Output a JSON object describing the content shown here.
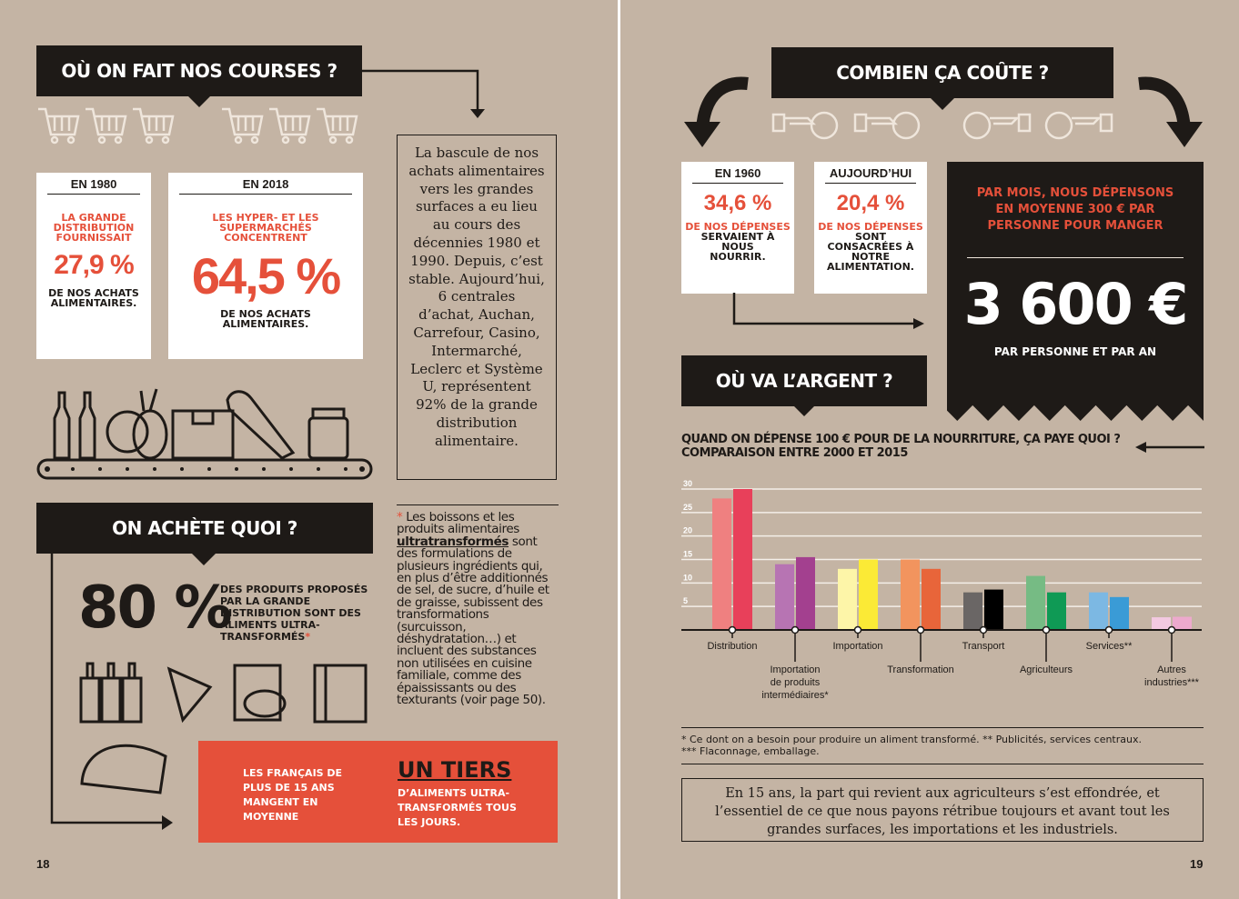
{
  "left": {
    "section1": {
      "title": "OÙ ON FAIT NOS COURSES ?",
      "card1980": {
        "year": "EN 1980",
        "lead": "LA GRANDE DISTRIBUTION FOURNISSAIT",
        "value": "27,9 %",
        "tail": "DE NOS ACHATS ALIMENTAIRES."
      },
      "card2018": {
        "year": "EN 2018",
        "lead": "LES HYPER- ET LES SUPERMARCHÉS CONCENTRENT",
        "value": "64,5 %",
        "tail": "DE NOS ACHATS ALIMENTAIRES."
      },
      "sidebox": "La bascule de nos achats alimentaires vers les grandes surfaces a eu lieu au cours des décennies 1980 et 1990. Depuis, c’est stable. Aujourd’hui, 6 centrales d’achat, Auchan, Carrefour, Casino, Intermarché, Leclerc et Système U, représentent 92% de la grande distribution alimentaire."
    },
    "section2": {
      "title": "ON ACHÈTE QUOI ?",
      "big": "80 %",
      "desc": "DES PRODUITS PROPOSÉS PAR LA GRANDE DISTRIBUTION SONT DES ALIMENTS ULTRA-TRANSFORMÉS",
      "star": "*",
      "note_star": "*",
      "note_a": "Les boissons et les produits alimentaires",
      "note_bold": "ultratransformés",
      "note_b": "sont des formulations de plusieurs ingrédients qui, en plus d’être additionnés de sel, de sucre, d’huile et de graisse, subissent des transformations (surcuisson, déshydratation…) et incluent des substances non utilisées en cuisine familiale, comme des épaississants ou des texturants (voir page 50).",
      "banner_left": "LES FRANÇAIS DE PLUS DE 15 ANS MANGENT EN MOYENNE",
      "banner_big": "UN TIERS",
      "banner_right": "D’ALIMENTS ULTRA-TRANSFORMÉS TOUS LES JOURS."
    },
    "page_number": "18"
  },
  "right": {
    "section1": {
      "title": "COMBIEN ÇA COÛTE ?",
      "card1960": {
        "year": "EN 1960",
        "value": "34,6 %",
        "lead": "DE NOS DÉPENSES",
        "tail": "SERVAIENT À NOUS NOURRIR."
      },
      "cardToday": {
        "year": "AUJOURD’HUI",
        "value": "20,4 %",
        "lead": "DE NOS DÉPENSES",
        "tail": "SONT CONSACRÉES À NOTRE ALIMENTATION."
      },
      "black_lead": "PAR MOIS, NOUS DÉPENSONS EN MOYENNE 300 € PAR PERSONNE POUR MANGER",
      "black_value": "3 600 €",
      "black_tail": "PAR PERSONNE ET PAR AN"
    },
    "section2": {
      "title": "OÙ VA L’ARGENT ?",
      "question": "QUAND ON DÉPENSE 100 € POUR DE LA NOURRITURE, ÇA PAYE QUOI ?",
      "subtitle": "COMPARAISON ENTRE 2000 ET 2015",
      "footnote1": "* Ce dont on a besoin pour produire un aliment transformé. ** Publicités, services centraux.",
      "footnote2": "*** Flaconnage, emballage.",
      "conclusion": "En 15 ans, la part qui revient aux agriculteurs s’est effondrée, et l’essentiel de ce que nous payons rétribue toujours et avant tout les grandes surfaces, les importations et les industriels."
    },
    "page_number": "19"
  },
  "chart_data": {
    "type": "bar",
    "title": "QUAND ON DÉPENSE 100 € POUR DE LA NOURRITURE, ÇA PAYE QUOI ?",
    "subtitle": "COMPARAISON ENTRE 2000 ET 2015",
    "categories": [
      "Distribution",
      "Importation de produits intermédiaires*",
      "Importation",
      "Transformation",
      "Transport",
      "Agriculteurs",
      "Services**",
      "Autres industries***"
    ],
    "series": [
      {
        "name": "2000",
        "values": [
          28,
          14,
          13,
          15,
          8,
          11.5,
          8,
          2.7
        ]
      },
      {
        "name": "2015",
        "values": [
          30,
          15.5,
          15,
          13,
          8.6,
          8,
          7,
          2.8
        ]
      }
    ],
    "colors": [
      [
        "#ef8080",
        "#e8405a"
      ],
      [
        "#b774b3",
        "#a3408f"
      ],
      [
        "#fdf5a8",
        "#fbea36"
      ],
      [
        "#f2945e",
        "#e8653a"
      ],
      [
        "#6a6665",
        "#000000"
      ],
      [
        "#76bb84",
        "#0f9a55"
      ],
      [
        "#7cb8e3",
        "#3a9bd6"
      ],
      [
        "#f3c9e1",
        "#eda9cd"
      ]
    ],
    "yticks": [
      5,
      10,
      15,
      20,
      25,
      30
    ],
    "ylim": [
      0,
      30
    ],
    "grid": true
  }
}
